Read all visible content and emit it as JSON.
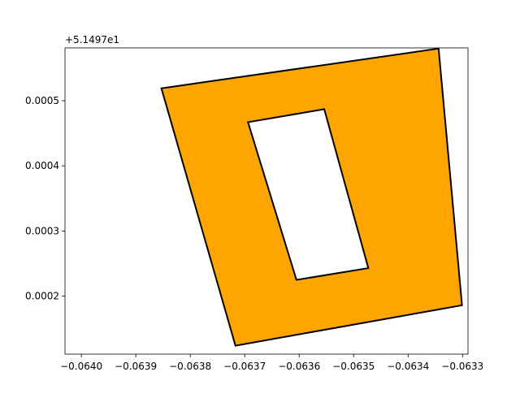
{
  "chart_data": {
    "type": "polygon",
    "title": "",
    "xlabel": "",
    "ylabel": "",
    "y_offset_label": "+5.1497e1",
    "y_offset": 51.497,
    "xlim": [
      -0.06403,
      -0.06329
    ],
    "ylim": [
      0.000111,
      0.000581
    ],
    "x_ticks": [
      {
        "value": -0.064,
        "label": "−0.0640"
      },
      {
        "value": -0.0639,
        "label": "−0.0639"
      },
      {
        "value": -0.0638,
        "label": "−0.0638"
      },
      {
        "value": -0.0637,
        "label": "−0.0637"
      },
      {
        "value": -0.0636,
        "label": "−0.0636"
      },
      {
        "value": -0.0635,
        "label": "−0.0635"
      },
      {
        "value": -0.0634,
        "label": "−0.0634"
      },
      {
        "value": -0.0633,
        "label": "−0.0633"
      }
    ],
    "y_ticks": [
      {
        "value": 0.0002,
        "label": "0.0002"
      },
      {
        "value": 0.0003,
        "label": "0.0003"
      },
      {
        "value": 0.0004,
        "label": "0.0004"
      },
      {
        "value": 0.0005,
        "label": "0.0005"
      }
    ],
    "grid": false,
    "fill_color": "#ffa500",
    "edge_color": "#000000",
    "exterior": [
      [
        -0.063853,
        0.000519
      ],
      [
        -0.063344,
        0.00058
      ],
      [
        -0.063301,
        0.000186
      ],
      [
        -0.063717,
        0.000124
      ]
    ],
    "hole": [
      [
        -0.063694,
        0.000467
      ],
      [
        -0.063554,
        0.000487
      ],
      [
        -0.063473,
        0.000243
      ],
      [
        -0.063605,
        0.000225
      ]
    ]
  }
}
